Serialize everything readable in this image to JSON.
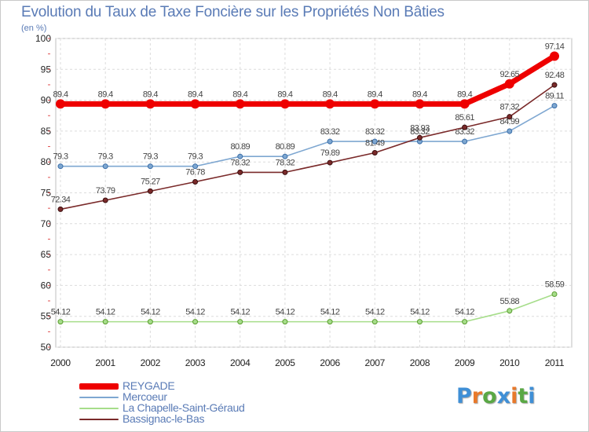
{
  "header": {
    "title": "Evolution du Taux de Taxe Foncière sur les Propriétés Non Bâties",
    "unit": "(en %)"
  },
  "logo": {
    "text": "Proxiti",
    "letter_colors": [
      "#3f8fd6",
      "#e8792b",
      "#5aa845",
      "#3f8fd6",
      "#e8792b",
      "#5aa845",
      "#3f8fd6"
    ]
  },
  "chart_data": {
    "type": "line",
    "x": [
      "2000",
      "2001",
      "2002",
      "2003",
      "2004",
      "2005",
      "2006",
      "2007",
      "2008",
      "2009",
      "2010",
      "2011"
    ],
    "ylim": [
      50,
      100
    ],
    "yticks": [
      50,
      55,
      60,
      65,
      70,
      75,
      80,
      85,
      90,
      95,
      100
    ],
    "grid": true,
    "legend_position": "bottom-left",
    "series": [
      {
        "name": "REYGADE",
        "color": "#ee0000",
        "values": [
          89.4,
          89.4,
          89.4,
          89.4,
          89.4,
          89.4,
          89.4,
          89.4,
          89.4,
          89.4,
          92.65,
          97.14
        ],
        "labels": [
          "89.4",
          "89.4",
          "89.4",
          "89.4",
          "89.4",
          "89.4",
          "89.4",
          "89.4",
          "89.4",
          "89.4",
          "92.65",
          "97.14"
        ]
      },
      {
        "name": "Mercoeur",
        "color": "#7ea7d1",
        "values": [
          79.3,
          79.3,
          79.3,
          79.3,
          80.89,
          80.89,
          83.32,
          83.32,
          83.32,
          83.32,
          84.99,
          89.11
        ],
        "labels": [
          "79.3",
          "79.3",
          "79.3",
          "79.3",
          "80.89",
          "80.89",
          "83.32",
          "83.32",
          "83.32",
          "83.32",
          "84.99",
          "89.11"
        ]
      },
      {
        "name": "La Chapelle-Saint-Géraud",
        "color": "#a6dd8a",
        "values": [
          54.12,
          54.12,
          54.12,
          54.12,
          54.12,
          54.12,
          54.12,
          54.12,
          54.12,
          54.12,
          55.88,
          58.59
        ],
        "labels": [
          "54.12",
          "54.12",
          "54.12",
          "54.12",
          "54.12",
          "54.12",
          "54.12",
          "54.12",
          "54.12",
          "54.12",
          "55.88",
          "58.59"
        ]
      },
      {
        "name": "Bassignac-le-Bas",
        "color": "#7a2a2a",
        "values": [
          72.34,
          73.79,
          75.27,
          76.78,
          78.32,
          78.32,
          79.89,
          81.49,
          83.93,
          85.61,
          87.32,
          92.48
        ],
        "labels": [
          "72.34",
          "73.79",
          "75.27",
          "76.78",
          "78.32",
          "78.32",
          "79.89",
          "81.49",
          "83.93",
          "85.61",
          "87.32",
          "92.48"
        ]
      }
    ]
  }
}
